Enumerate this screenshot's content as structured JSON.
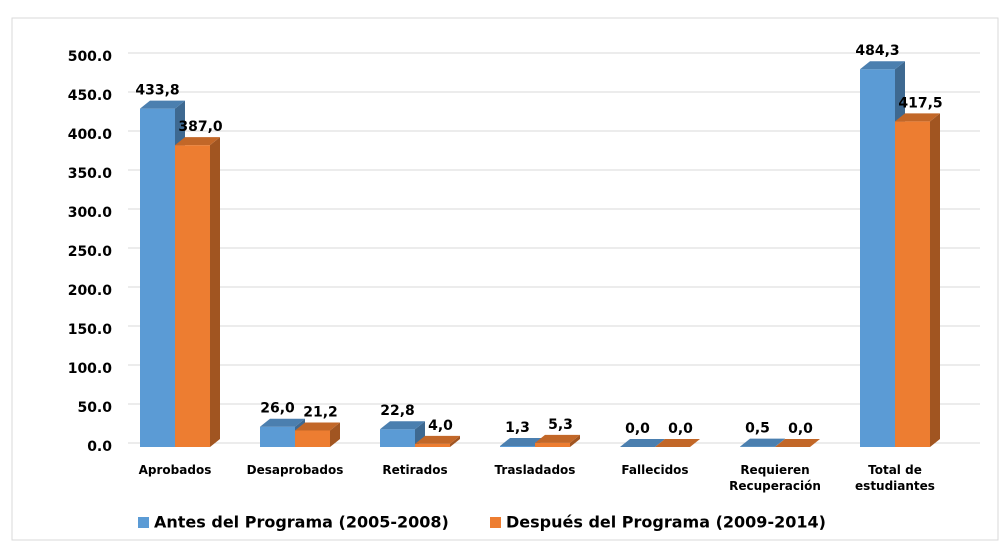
{
  "chart_data": {
    "type": "bar3d",
    "categories": [
      "Aprobados",
      "Desaprobados",
      "Retirados",
      "Trasladados",
      "Fallecidos",
      "Requieren Recuperación",
      "Total de estudiantes"
    ],
    "series": [
      {
        "name": "Antes del Programa (2005-2008)",
        "color": "#5b9bd5",
        "values": [
          433.8,
          26.0,
          22.8,
          1.3,
          0.0,
          0.5,
          484.3
        ],
        "value_labels": [
          "433,8",
          "26,0",
          "22,8",
          "1,3",
          "0,0",
          "0,5",
          "484,3"
        ]
      },
      {
        "name": "Después del Programa (2009-2014)",
        "color": "#ed7d31",
        "values": [
          387.0,
          21.2,
          4.0,
          5.3,
          0.0,
          0.0,
          417.5
        ],
        "value_labels": [
          "387,0",
          "21,2",
          "4,0",
          "5,3",
          "0,0",
          "0,0",
          "417,5"
        ]
      }
    ],
    "ylim": [
      0,
      500
    ],
    "yticks": [
      {
        "value": 0,
        "label": "0.0"
      },
      {
        "value": 50,
        "label": "50.0"
      },
      {
        "value": 100,
        "label": "100.0"
      },
      {
        "value": 150,
        "label": "150.0"
      },
      {
        "value": 200,
        "label": "200.0"
      },
      {
        "value": 250,
        "label": "250.0"
      },
      {
        "value": 300,
        "label": "300.0"
      },
      {
        "value": 350,
        "label": "350.0"
      },
      {
        "value": 400,
        "label": "400.0"
      },
      {
        "value": 450,
        "label": "450.0"
      },
      {
        "value": 500,
        "label": "500.0"
      }
    ],
    "grid": true,
    "legend": "bottom"
  }
}
